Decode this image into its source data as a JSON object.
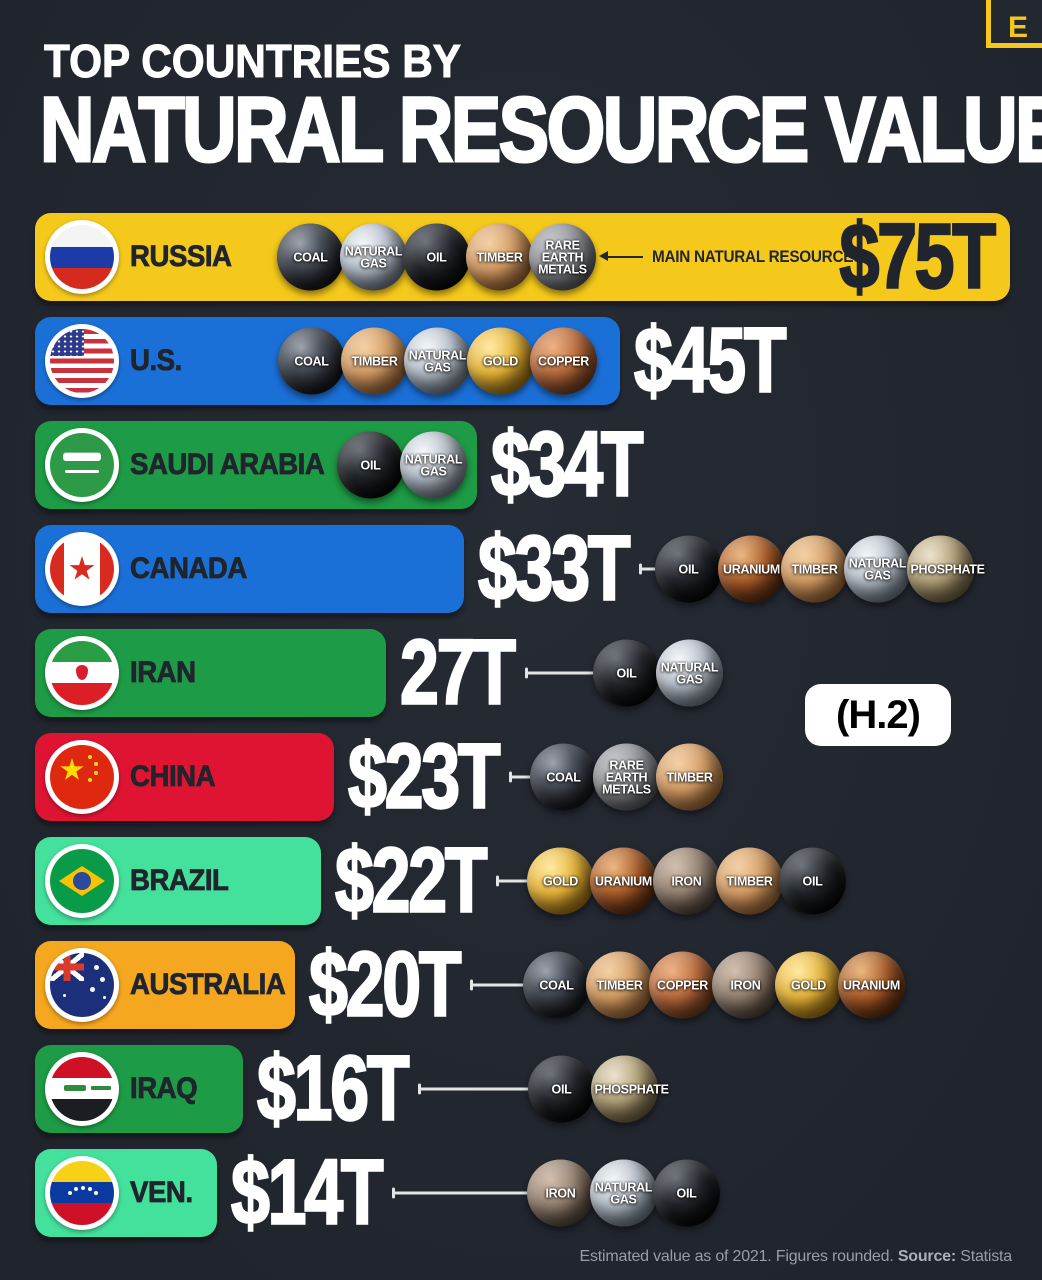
{
  "header": {
    "kicker": "TOP COUNTRIES BY",
    "title": "NATURAL RESOURCE VALUE",
    "logo_letter": "E"
  },
  "annotation_badge": "(H.2)",
  "footer": {
    "text": "Estimated value as of 2021. Figures rounded.",
    "source_label": "Source:",
    "source_value": "Statista"
  },
  "colors": {
    "background": "#23272f",
    "yellow": "#F5C91B",
    "blue": "#1B70D8",
    "green": "#1E9B46",
    "red": "#DF1433",
    "mint": "#43E19C",
    "orange": "#F5A71F",
    "dark_text": "#20242C",
    "white": "#FFFFFF"
  },
  "rows": [
    {
      "country": "RUSSIA",
      "flag": "russia",
      "value_label": "$75T",
      "value_t": 75,
      "bar_color": "#F5C91B",
      "value_color": "#20242C",
      "value_inside": true,
      "note": "MAIN NATURAL RESOURCES",
      "resources": [
        {
          "id": "coal",
          "label": "COAL"
        },
        {
          "id": "natural-gas",
          "label": "NATURAL GAS"
        },
        {
          "id": "oil",
          "label": "OIL"
        },
        {
          "id": "timber",
          "label": "TIMBER"
        },
        {
          "id": "rare-earth",
          "label": "RARE EARTH METALS"
        }
      ]
    },
    {
      "country": "U.S.",
      "flag": "us",
      "value_label": "$45T",
      "value_t": 45,
      "bar_color": "#1B70D8",
      "value_color": "#FFFFFF",
      "value_inside": false,
      "resources": [
        {
          "id": "coal",
          "label": "COAL"
        },
        {
          "id": "timber",
          "label": "TIMBER"
        },
        {
          "id": "natural-gas",
          "label": "NATURAL GAS"
        },
        {
          "id": "gold",
          "label": "GOLD"
        },
        {
          "id": "copper",
          "label": "COPPER"
        }
      ]
    },
    {
      "country": "SAUDI ARABIA",
      "flag": "saudi",
      "value_label": "$34T",
      "value_t": 34,
      "bar_color": "#1E9B46",
      "value_color": "#FFFFFF",
      "value_inside": false,
      "resources": [
        {
          "id": "oil",
          "label": "OIL"
        },
        {
          "id": "natural-gas",
          "label": "NATURAL GAS"
        }
      ]
    },
    {
      "country": "CANADA",
      "flag": "canada",
      "value_label": "$33T",
      "value_t": 33,
      "bar_color": "#1B70D8",
      "value_color": "#FFFFFF",
      "value_inside": false,
      "resources": [
        {
          "id": "oil",
          "label": "OIL"
        },
        {
          "id": "uranium",
          "label": "URANIUM"
        },
        {
          "id": "timber",
          "label": "TIMBER"
        },
        {
          "id": "natural-gas",
          "label": "NATURAL GAS"
        },
        {
          "id": "phosphate",
          "label": "PHOSPHATE"
        }
      ]
    },
    {
      "country": "IRAN",
      "flag": "iran",
      "value_label": "27T",
      "value_t": 27,
      "bar_color": "#1E9B46",
      "value_color": "#FFFFFF",
      "value_inside": false,
      "resources": [
        {
          "id": "oil",
          "label": "OIL"
        },
        {
          "id": "natural-gas",
          "label": "NATURAL GAS"
        }
      ]
    },
    {
      "country": "CHINA",
      "flag": "china",
      "value_label": "$23T",
      "value_t": 23,
      "bar_color": "#DF1433",
      "value_color": "#FFFFFF",
      "value_inside": false,
      "resources": [
        {
          "id": "coal",
          "label": "COAL"
        },
        {
          "id": "rare-earth",
          "label": "RARE EARTH METALS"
        },
        {
          "id": "timber",
          "label": "TIMBER"
        }
      ]
    },
    {
      "country": "BRAZIL",
      "flag": "brazil",
      "value_label": "$22T",
      "value_t": 22,
      "bar_color": "#43E19C",
      "value_color": "#FFFFFF",
      "value_inside": false,
      "resources": [
        {
          "id": "gold",
          "label": "GOLD"
        },
        {
          "id": "uranium",
          "label": "URANIUM"
        },
        {
          "id": "iron",
          "label": "IRON"
        },
        {
          "id": "timber",
          "label": "TIMBER"
        },
        {
          "id": "oil",
          "label": "OIL"
        }
      ]
    },
    {
      "country": "AUSTRALIA",
      "flag": "australia",
      "value_label": "$20T",
      "value_t": 20,
      "bar_color": "#F5A71F",
      "value_color": "#FFFFFF",
      "value_inside": false,
      "resources": [
        {
          "id": "coal",
          "label": "COAL"
        },
        {
          "id": "timber",
          "label": "TIMBER"
        },
        {
          "id": "copper",
          "label": "COPPER"
        },
        {
          "id": "iron",
          "label": "IRON"
        },
        {
          "id": "gold",
          "label": "GOLD"
        },
        {
          "id": "uranium",
          "label": "URANIUM"
        }
      ]
    },
    {
      "country": "IRAQ",
      "flag": "iraq",
      "value_label": "$16T",
      "value_t": 16,
      "bar_color": "#1E9B46",
      "value_color": "#FFFFFF",
      "value_inside": false,
      "resources": [
        {
          "id": "oil",
          "label": "OIL"
        },
        {
          "id": "phosphate",
          "label": "PHOSPHATE"
        }
      ]
    },
    {
      "country": "VEN.",
      "flag": "venezuela",
      "value_label": "$14T",
      "value_t": 14,
      "bar_color": "#43E19C",
      "value_color": "#FFFFFF",
      "value_inside": false,
      "resources": [
        {
          "id": "iron",
          "label": "IRON"
        },
        {
          "id": "natural-gas",
          "label": "NATURAL GAS"
        },
        {
          "id": "oil",
          "label": "OIL"
        }
      ]
    }
  ],
  "chart_data": {
    "type": "bar",
    "title": "TOP COUNTRIES BY NATURAL RESOURCE VALUE",
    "unit": "trillion USD",
    "orientation": "horizontal",
    "categories": [
      "Russia",
      "U.S.",
      "Saudi Arabia",
      "Canada",
      "Iran",
      "China",
      "Brazil",
      "Australia",
      "Iraq",
      "Venezuela"
    ],
    "values": [
      75,
      45,
      34,
      33,
      27,
      23,
      22,
      20,
      16,
      14
    ],
    "value_labels": [
      "$75T",
      "$45T",
      "$34T",
      "$33T",
      "27T",
      "$23T",
      "$22T",
      "$20T",
      "$16T",
      "$14T"
    ],
    "resources_per_country": [
      [
        "Coal",
        "Natural Gas",
        "Oil",
        "Timber",
        "Rare Earth Metals"
      ],
      [
        "Coal",
        "Timber",
        "Natural Gas",
        "Gold",
        "Copper"
      ],
      [
        "Oil",
        "Natural Gas"
      ],
      [
        "Oil",
        "Uranium",
        "Timber",
        "Natural Gas",
        "Phosphate"
      ],
      [
        "Oil",
        "Natural Gas"
      ],
      [
        "Coal",
        "Rare Earth Metals",
        "Timber"
      ],
      [
        "Gold",
        "Uranium",
        "Iron",
        "Timber",
        "Oil"
      ],
      [
        "Coal",
        "Timber",
        "Copper",
        "Iron",
        "Gold",
        "Uranium"
      ],
      [
        "Oil",
        "Phosphate"
      ],
      [
        "Iron",
        "Natural Gas",
        "Oil"
      ]
    ],
    "annotation": "MAIN NATURAL RESOURCES",
    "note": "Estimated value as of 2021. Figures rounded.",
    "source": "Statista",
    "xlim": [
      0,
      80
    ],
    "grid": false,
    "legend": false
  }
}
